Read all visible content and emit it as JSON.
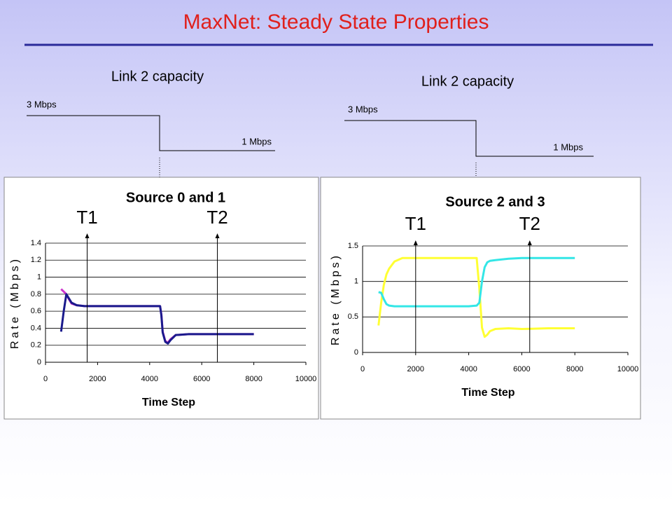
{
  "title": "MaxNet: Steady State Properties",
  "capacity_diagrams": [
    {
      "label": "Link 2 capacity",
      "high": "3 Mbps",
      "low": "1 Mbps"
    },
    {
      "label": "Link 2 capacity",
      "high": "3 Mbps",
      "low": "1 Mbps"
    }
  ],
  "chart_data": [
    {
      "type": "line",
      "title": "Source 0 and 1",
      "x_label": "Time Step",
      "y_label": "Rate (Mbps)",
      "xlim": [
        0,
        10000
      ],
      "xticks": [
        0,
        2000,
        4000,
        6000,
        8000,
        10000
      ],
      "ylim": [
        0,
        1.4
      ],
      "yticks": [
        0,
        0.2,
        0.4,
        0.6,
        0.8,
        1,
        1.2,
        1.4
      ],
      "grid": true,
      "x": [
        600,
        700,
        800,
        900,
        1000,
        1200,
        1500,
        2000,
        3000,
        4000,
        4400,
        4450,
        4500,
        4600,
        4700,
        4800,
        5000,
        5500,
        6000,
        7000,
        8000
      ],
      "series": [
        {
          "color": "#cc33cc",
          "values": [
            0.86,
            0.83,
            0.8,
            0.74,
            0.69,
            0.67,
            0.66,
            0.66,
            0.66,
            0.66,
            0.66,
            0.56,
            0.36,
            0.25,
            0.23,
            0.27,
            0.32,
            0.33,
            0.33,
            0.33,
            0.33
          ]
        },
        {
          "color": "#1a1a8c",
          "values": [
            0.36,
            0.6,
            0.8,
            0.75,
            0.7,
            0.67,
            0.66,
            0.66,
            0.66,
            0.66,
            0.66,
            0.55,
            0.35,
            0.24,
            0.22,
            0.26,
            0.32,
            0.33,
            0.33,
            0.33,
            0.33
          ]
        }
      ],
      "annotations": [
        {
          "text": "T1",
          "x": 1600
        },
        {
          "text": "T2",
          "x": 6600
        }
      ]
    },
    {
      "type": "line",
      "title": "Source 2 and 3",
      "x_label": "Time Step",
      "y_label": "Rate (Mbps)",
      "xlim": [
        0,
        10000
      ],
      "xticks": [
        0,
        2000,
        4000,
        6000,
        8000,
        10000
      ],
      "ylim": [
        0,
        1.5
      ],
      "yticks": [
        0,
        0.5,
        1,
        1.5
      ],
      "grid": true,
      "x": [
        600,
        700,
        800,
        900,
        1000,
        1200,
        1500,
        2000,
        3000,
        4000,
        4300,
        4400,
        4500,
        4600,
        4700,
        4800,
        5000,
        5500,
        6000,
        7000,
        8000
      ],
      "series": [
        {
          "color": "#ffff33",
          "values": [
            0.38,
            0.7,
            0.95,
            1.1,
            1.18,
            1.28,
            1.33,
            1.33,
            1.33,
            1.33,
            1.33,
            0.9,
            0.35,
            0.22,
            0.25,
            0.3,
            0.33,
            0.34,
            0.33,
            0.34,
            0.34
          ]
        },
        {
          "color": "#33e6e6",
          "values": [
            0.85,
            0.84,
            0.75,
            0.68,
            0.66,
            0.65,
            0.65,
            0.65,
            0.65,
            0.65,
            0.66,
            0.7,
            1.0,
            1.2,
            1.27,
            1.29,
            1.3,
            1.32,
            1.33,
            1.33,
            1.33
          ]
        }
      ],
      "annotations": [
        {
          "text": "T1",
          "x": 2000
        },
        {
          "text": "T2",
          "x": 6300
        }
      ]
    }
  ]
}
